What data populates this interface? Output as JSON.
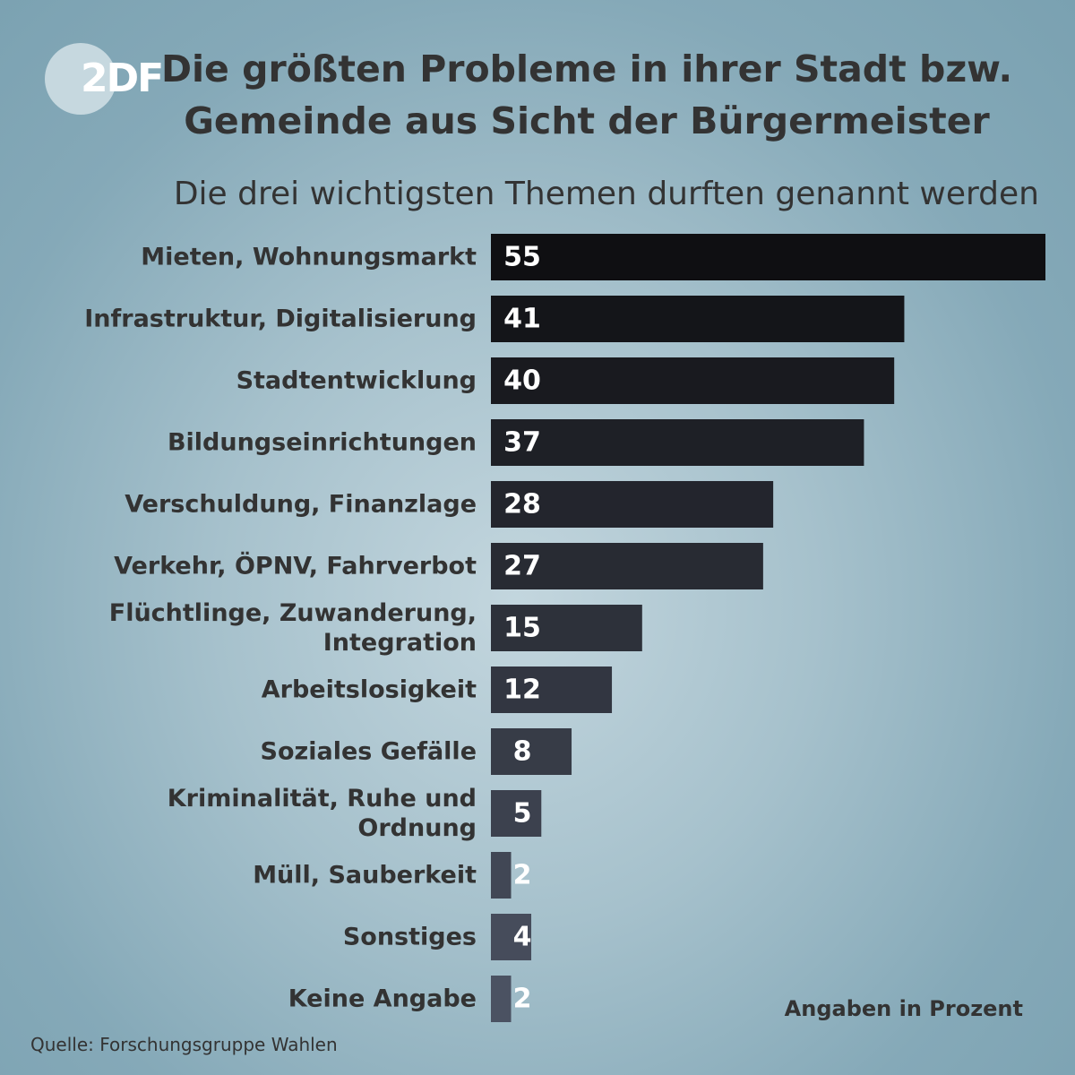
{
  "brand": {
    "logo_text": "2DF"
  },
  "colors": {
    "bar_dark": "#0f0f12",
    "bar_light": "#4b5262",
    "label": "#333333",
    "value_text": "#ffffff"
  },
  "chart_data": {
    "type": "bar",
    "orientation": "horizontal",
    "title": "Die größten Probleme in ihrer Stadt bzw. Gemeinde aus Sicht der Bürgermeister",
    "subtitle": "Die drei wichtigsten Themen durften genannt werden",
    "categories": [
      "Mieten, Wohnungsmarkt",
      "Infrastruktur, Digitalisierung",
      "Stadtentwicklung",
      "Bildungseinrichtungen",
      "Verschuldung, Finanzlage",
      "Verkehr, ÖPNV, Fahrverbot",
      "Flüchtlinge, Zuwanderung,\nIntegration",
      "Arbeitslosigkeit",
      "Soziales Gefälle",
      "Kriminalität, Ruhe und\nOrdnung",
      "Müll, Sauberkeit",
      "Sonstiges",
      "Keine Angabe"
    ],
    "values": [
      55,
      41,
      40,
      37,
      28,
      27,
      15,
      12,
      8,
      5,
      2,
      4,
      2
    ],
    "unit_note": "Angaben in Prozent",
    "xlim": [
      0,
      55
    ],
    "grid": false,
    "legend": "none"
  },
  "footer": {
    "source": "Quelle: Forschungsgruppe Wahlen"
  }
}
